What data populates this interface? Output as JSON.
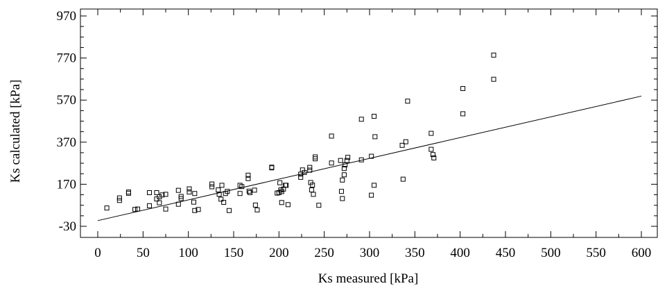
{
  "chart_data": {
    "type": "scatter",
    "xlabel": "Ks measured [kPa]",
    "ylabel": "Ks calculated [kPa]",
    "xlim": [
      -18,
      610
    ],
    "ylim": [
      -30,
      970
    ],
    "xticks": [
      0,
      50,
      100,
      150,
      200,
      250,
      300,
      350,
      400,
      450,
      500,
      550,
      600
    ],
    "yticks": [
      -30,
      170,
      370,
      570,
      770,
      970
    ],
    "xtick_labels": [
      "0",
      "50",
      "100",
      "150",
      "200",
      "250",
      "300",
      "350",
      "400",
      "450",
      "500",
      "550",
      "600"
    ],
    "ytick_labels": [
      "-30",
      "170",
      "370",
      "570",
      "770",
      "970"
    ],
    "grid": false,
    "marker": "open-square",
    "color": "#000000",
    "points": [
      [
        10,
        57
      ],
      [
        24,
        105
      ],
      [
        24,
        93
      ],
      [
        34,
        133
      ],
      [
        34,
        127
      ],
      [
        41,
        50
      ],
      [
        44,
        52
      ],
      [
        57,
        130
      ],
      [
        57,
        68
      ],
      [
        65,
        130
      ],
      [
        65,
        100
      ],
      [
        68,
        82
      ],
      [
        68,
        110
      ],
      [
        71,
        119
      ],
      [
        75,
        122
      ],
      [
        75,
        52
      ],
      [
        89,
        141
      ],
      [
        89,
        75
      ],
      [
        92,
        112
      ],
      [
        92,
        102
      ],
      [
        101,
        148
      ],
      [
        101,
        133
      ],
      [
        106,
        85
      ],
      [
        107,
        126
      ],
      [
        107,
        45
      ],
      [
        111,
        50
      ],
      [
        126,
        171
      ],
      [
        126,
        158
      ],
      [
        133,
        143
      ],
      [
        134,
        122
      ],
      [
        136,
        99
      ],
      [
        137,
        165
      ],
      [
        139,
        84
      ],
      [
        141,
        126
      ],
      [
        143,
        136
      ],
      [
        145,
        45
      ],
      [
        157,
        165
      ],
      [
        157,
        126
      ],
      [
        159,
        159
      ],
      [
        166,
        213
      ],
      [
        166,
        197
      ],
      [
        167,
        137
      ],
      [
        168,
        130
      ],
      [
        173,
        142
      ],
      [
        174,
        71
      ],
      [
        176,
        48
      ],
      [
        192,
        248
      ],
      [
        192,
        251
      ],
      [
        198,
        128
      ],
      [
        200,
        130
      ],
      [
        201,
        177
      ],
      [
        202,
        143
      ],
      [
        203,
        83
      ],
      [
        203,
        135
      ],
      [
        205,
        147
      ],
      [
        207,
        165
      ],
      [
        208,
        165
      ],
      [
        210,
        73
      ],
      [
        224,
        203
      ],
      [
        224,
        218
      ],
      [
        226,
        238
      ],
      [
        228,
        226
      ],
      [
        234,
        237
      ],
      [
        234,
        250
      ],
      [
        235,
        178
      ],
      [
        236,
        143
      ],
      [
        237,
        166
      ],
      [
        238,
        122
      ],
      [
        240,
        291
      ],
      [
        240,
        300
      ],
      [
        244,
        70
      ],
      [
        258,
        399
      ],
      [
        258,
        271
      ],
      [
        268,
        283
      ],
      [
        269,
        136
      ],
      [
        270,
        102
      ],
      [
        270,
        190
      ],
      [
        272,
        215
      ],
      [
        272,
        245
      ],
      [
        273,
        262
      ],
      [
        275,
        283
      ],
      [
        276,
        298
      ],
      [
        291,
        479
      ],
      [
        291,
        286
      ],
      [
        302,
        118
      ],
      [
        302,
        303
      ],
      [
        305,
        165
      ],
      [
        305,
        493
      ],
      [
        306,
        396
      ],
      [
        336,
        355
      ],
      [
        337,
        194
      ],
      [
        340,
        372
      ],
      [
        342,
        565
      ],
      [
        368,
        412
      ],
      [
        368,
        336
      ],
      [
        370,
        311
      ],
      [
        371,
        295
      ],
      [
        403,
        625
      ],
      [
        403,
        505
      ],
      [
        437,
        784
      ],
      [
        437,
        669
      ]
    ],
    "fit_line": {
      "x": [
        0,
        600
      ],
      "y": [
        -3,
        589
      ]
    }
  }
}
